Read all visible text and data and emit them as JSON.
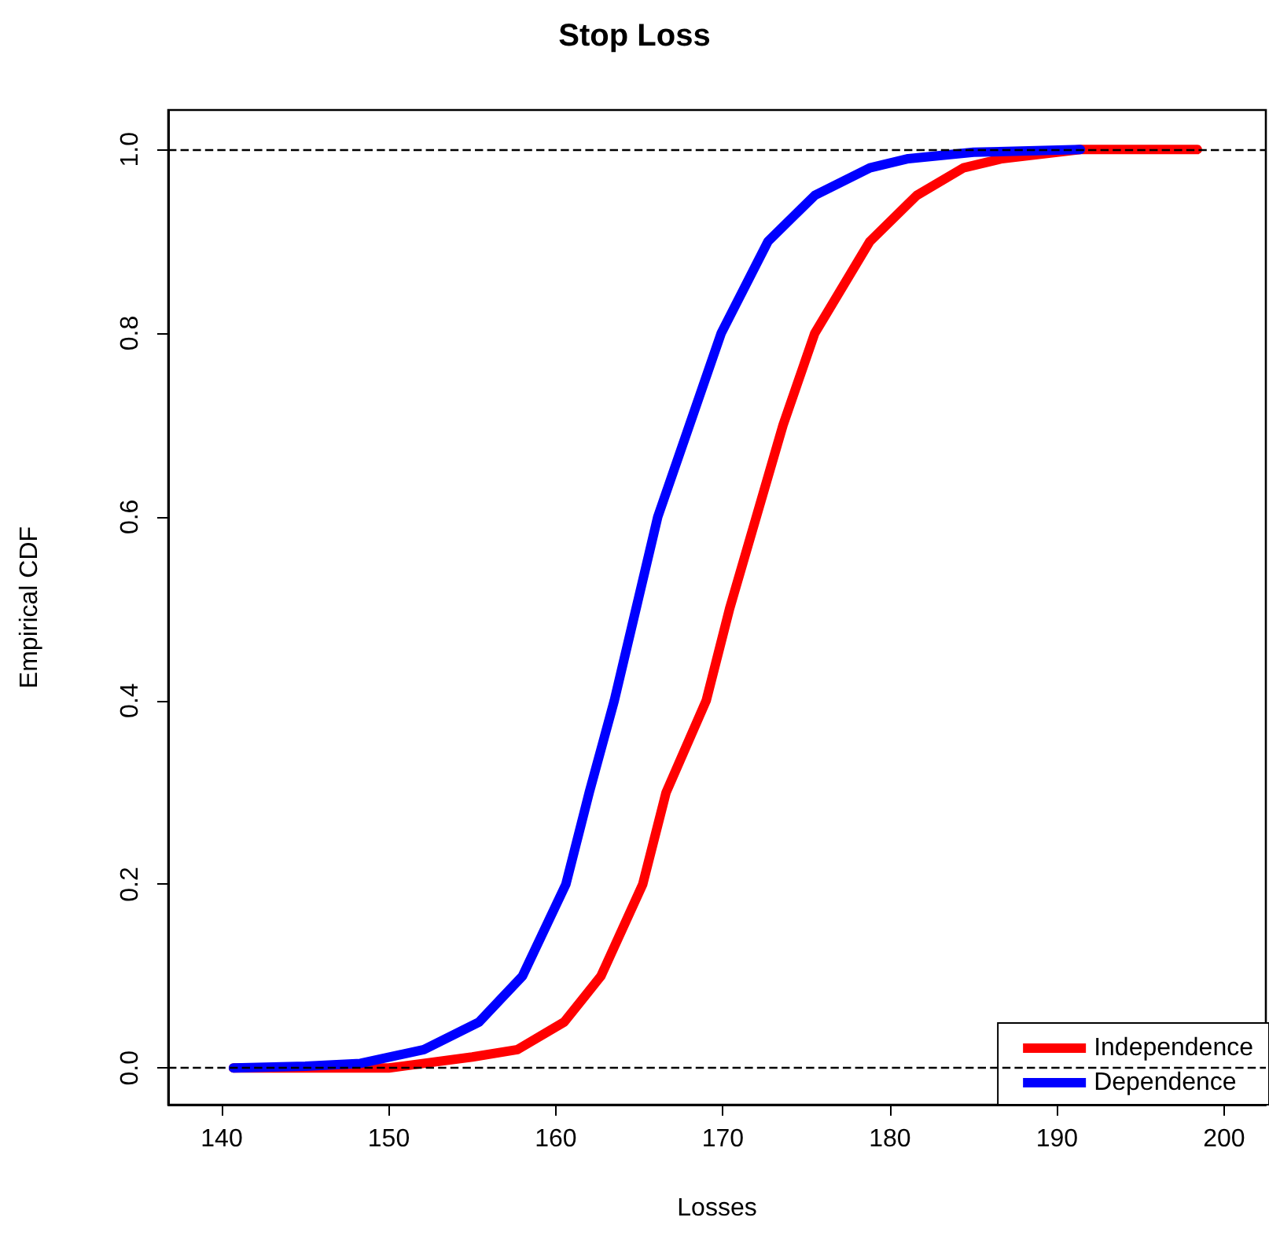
{
  "chart_data": {
    "type": "line",
    "title": "Stop Loss",
    "xlabel": "Losses",
    "ylabel": "Empirical CDF",
    "series": [
      {
        "name": "Independence",
        "color": "#ff0000",
        "x": [
          140.7,
          150,
          152.1,
          155,
          157.7,
          160.5,
          162.7,
          165.2,
          166.6,
          169.0,
          170.4,
          172.0,
          173.6,
          175.5,
          178.8,
          181.6,
          184.4,
          186.7,
          191.4,
          198.4
        ],
        "values": [
          0,
          0,
          0.005,
          0.012,
          0.02,
          0.05,
          0.1,
          0.2,
          0.3,
          0.4,
          0.5,
          0.6,
          0.7,
          0.8,
          0.9,
          0.95,
          0.98,
          0.99,
          1.0,
          1.0
        ]
      },
      {
        "name": "Dependence",
        "color": "#0000ff",
        "x": [
          140.7,
          145,
          148.3,
          152.1,
          155.4,
          158.0,
          160.6,
          162.0,
          163.5,
          164.8,
          166.1,
          168.0,
          169.9,
          172.7,
          175.5,
          178.8,
          181.1,
          185,
          191.4
        ],
        "values": [
          0,
          0.002,
          0.005,
          0.02,
          0.05,
          0.1,
          0.2,
          0.3,
          0.4,
          0.5,
          0.6,
          0.7,
          0.8,
          0.9,
          0.95,
          0.98,
          0.99,
          0.997,
          1.0
        ]
      }
    ],
    "xlim": [
      136.8,
      202.5
    ],
    "xticks": [
      140,
      150,
      160,
      170,
      180,
      190,
      200
    ],
    "ylim": [
      -0.04,
      1.043
    ],
    "yticks": [
      {
        "value": 0,
        "label": "0.0"
      },
      {
        "value": 0.2,
        "label": "0.2"
      },
      {
        "value": 0.4,
        "label": "0.4"
      },
      {
        "value": 0.6,
        "label": "0.6"
      },
      {
        "value": 0.8,
        "label": "0.8"
      },
      {
        "value": 1,
        "label": "1.0"
      }
    ],
    "ref_lines": [
      {
        "axis": "y",
        "value": 0,
        "line_style": "dashed",
        "color": "#000000"
      },
      {
        "axis": "y",
        "value": 1,
        "line_style": "dashed",
        "color": "#000000"
      }
    ],
    "legend": "bottom right",
    "marker": "none",
    "line_style": "solid",
    "grid": false
  }
}
